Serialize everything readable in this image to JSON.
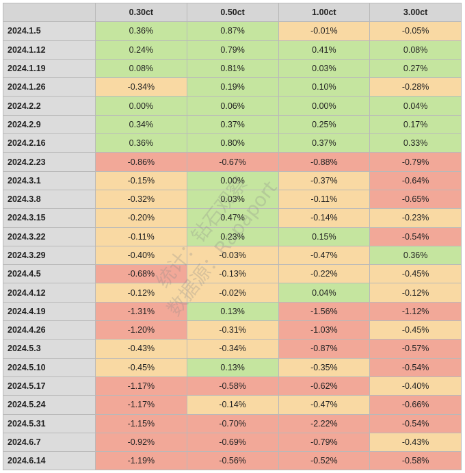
{
  "chart_data": {
    "type": "table",
    "columns": [
      "",
      "0.30ct",
      "0.50ct",
      "1.00ct",
      "3.00ct"
    ],
    "rows": [
      [
        "2024.1.5",
        "0.36%",
        "0.87%",
        "-0.01%",
        "-0.05%"
      ],
      [
        "2024.1.12",
        "0.24%",
        "0.79%",
        "0.41%",
        "0.08%"
      ],
      [
        "2024.1.19",
        "0.08%",
        "0.81%",
        "0.03%",
        "0.27%"
      ],
      [
        "2024.1.26",
        "-0.34%",
        "0.19%",
        "0.10%",
        "-0.28%"
      ],
      [
        "2024.2.2",
        "0.00%",
        "0.06%",
        "0.00%",
        "0.04%"
      ],
      [
        "2024.2.9",
        "0.34%",
        "0.37%",
        "0.25%",
        "0.17%"
      ],
      [
        "2024.2.16",
        "0.36%",
        "0.80%",
        "0.37%",
        "0.33%"
      ],
      [
        "2024.2.23",
        "-0.86%",
        "-0.67%",
        "-0.88%",
        "-0.79%"
      ],
      [
        "2024.3.1",
        "-0.15%",
        "0.00%",
        "-0.37%",
        "-0.64%"
      ],
      [
        "2024.3.8",
        "-0.32%",
        "0.03%",
        "-0.11%",
        "-0.65%"
      ],
      [
        "2024.3.15",
        "-0.20%",
        "0.47%",
        "-0.14%",
        "-0.23%"
      ],
      [
        "2024.3.22",
        "-0.11%",
        "0.23%",
        "0.15%",
        "-0.54%"
      ],
      [
        "2024.3.29",
        "-0.40%",
        "-0.03%",
        "-0.47%",
        "0.36%"
      ],
      [
        "2024.4.5",
        "-0.68%",
        "-0.13%",
        "-0.22%",
        "-0.45%"
      ],
      [
        "2024.4.12",
        "-0.12%",
        "-0.02%",
        "0.04%",
        "-0.12%"
      ],
      [
        "2024.4.19",
        "-1.31%",
        "0.13%",
        "-1.56%",
        "-1.12%"
      ],
      [
        "2024.4.26",
        "-1.20%",
        "-0.31%",
        "-1.03%",
        "-0.45%"
      ],
      [
        "2024.5.3",
        "-0.43%",
        "-0.34%",
        "-0.87%",
        "-0.57%"
      ],
      [
        "2024.5.10",
        "-0.45%",
        "0.13%",
        "-0.35%",
        "-0.54%"
      ],
      [
        "2024.5.17",
        "-1.17%",
        "-0.58%",
        "-0.62%",
        "-0.40%"
      ],
      [
        "2024.5.24",
        "-1.17%",
        "-0.14%",
        "-0.47%",
        "-0.66%"
      ],
      [
        "2024.5.31",
        "-1.15%",
        "-0.70%",
        "-2.22%",
        "-0.54%"
      ],
      [
        "2024.6.7",
        "-0.92%",
        "-0.69%",
        "-0.79%",
        "-0.43%"
      ],
      [
        "2024.6.14",
        "-1.19%",
        "-0.56%",
        "-0.52%",
        "-0.58%"
      ]
    ],
    "cell_colors": {
      "positive": "#c5e59f",
      "mild_negative": "#f9d9a3",
      "strong_negative": "#f2a898"
    },
    "watermark": [
      "统计：钻石观察",
      "数据源：Rapaport"
    ]
  }
}
